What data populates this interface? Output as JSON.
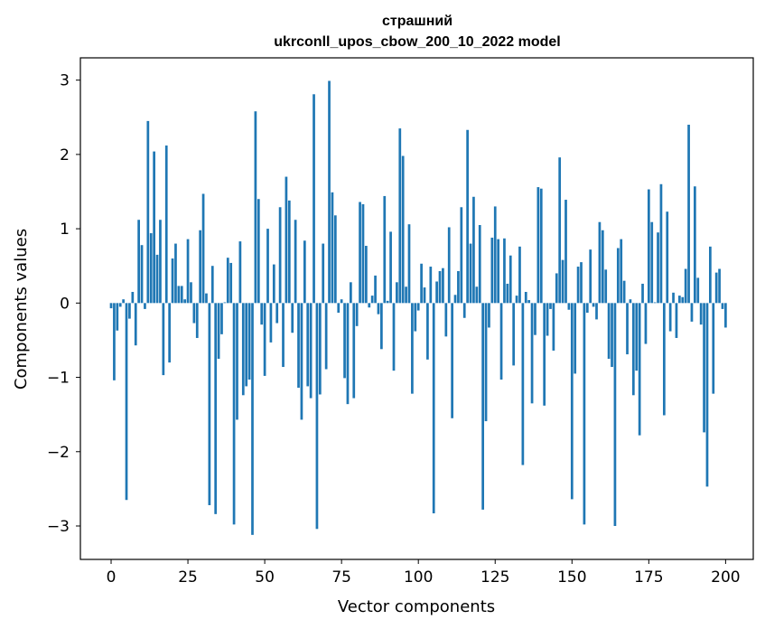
{
  "chart_data": {
    "type": "bar",
    "title_lines": [
      "страшний",
      "ukrconll_upos_cbow_200_10_2022 model"
    ],
    "xlabel": "Vector components",
    "ylabel": "Components values",
    "xlim": [
      -10,
      209
    ],
    "ylim": [
      -3.45,
      3.3
    ],
    "xticks": [
      0,
      25,
      50,
      75,
      100,
      125,
      150,
      175,
      200
    ],
    "yticks": [
      3,
      2,
      1,
      0,
      -1,
      -2,
      -3
    ],
    "ytick_labels": [
      "3",
      "2",
      "1",
      "0",
      "−1",
      "−2",
      "−3"
    ],
    "grid": false,
    "bar_color": "#1f77b4",
    "series": [
      {
        "name": "страшний",
        "values": [
          -0.07,
          -1.04,
          -0.37,
          -0.05,
          0.05,
          -2.65,
          -0.21,
          0.15,
          -0.57,
          1.12,
          0.78,
          -0.08,
          2.45,
          0.94,
          2.04,
          0.65,
          1.12,
          -0.97,
          2.12,
          -0.8,
          0.6,
          0.8,
          0.23,
          0.23,
          0.05,
          0.86,
          0.28,
          -0.27,
          -0.47,
          0.98,
          1.47,
          0.13,
          -2.72,
          0.5,
          -2.84,
          -0.75,
          -0.42,
          0.01,
          0.61,
          0.54,
          -2.98,
          -1.57,
          0.83,
          -1.24,
          -1.12,
          -1.03,
          -3.12,
          2.58,
          1.4,
          -0.29,
          -0.98,
          1.0,
          -0.53,
          0.52,
          -0.27,
          1.29,
          -0.86,
          1.7,
          1.38,
          -0.4,
          1.12,
          -1.14,
          -1.57,
          0.84,
          -1.12,
          -1.28,
          2.81,
          -3.04,
          -1.23,
          0.8,
          -0.89,
          2.99,
          1.49,
          1.18,
          -0.13,
          0.05,
          -1.01,
          -1.36,
          0.28,
          -1.28,
          -0.31,
          1.36,
          1.33,
          0.77,
          -0.06,
          0.1,
          0.37,
          -0.15,
          -0.62,
          1.44,
          0.03,
          0.96,
          -0.91,
          0.28,
          2.35,
          1.98,
          0.22,
          1.06,
          -1.22,
          -0.38,
          -0.1,
          0.53,
          0.21,
          -0.76,
          0.49,
          -2.83,
          0.29,
          0.43,
          0.47,
          -0.45,
          1.02,
          -1.55,
          0.11,
          0.43,
          1.29,
          -0.2,
          2.33,
          0.8,
          1.43,
          0.22,
          1.05,
          -2.78,
          -1.59,
          -0.33,
          0.88,
          1.3,
          0.86,
          -1.03,
          0.87,
          0.26,
          0.64,
          -0.84,
          0.1,
          0.76,
          -2.18,
          0.15,
          0.04,
          -1.35,
          -0.43,
          1.56,
          1.54,
          -1.38,
          -0.44,
          -0.08,
          -0.64,
          0.4,
          1.96,
          0.58,
          1.39,
          -0.09,
          -2.64,
          -0.95,
          0.49,
          0.55,
          -2.98,
          -0.13,
          0.72,
          -0.05,
          -0.22,
          1.09,
          0.98,
          0.45,
          -0.75,
          -0.86,
          -3.0,
          0.74,
          0.86,
          0.3,
          -0.69,
          0.05,
          -1.24,
          -0.91,
          -1.78,
          0.26,
          -0.55,
          1.53,
          1.09,
          0.01,
          0.95,
          1.6,
          -1.51,
          1.23,
          -0.38,
          0.14,
          -0.47,
          0.1,
          0.08,
          0.46,
          2.4,
          -0.25,
          1.57,
          0.34,
          -0.29,
          -1.74,
          -2.47,
          0.76,
          -1.22,
          0.41,
          0.46,
          -0.08,
          -0.33
        ]
      }
    ]
  }
}
